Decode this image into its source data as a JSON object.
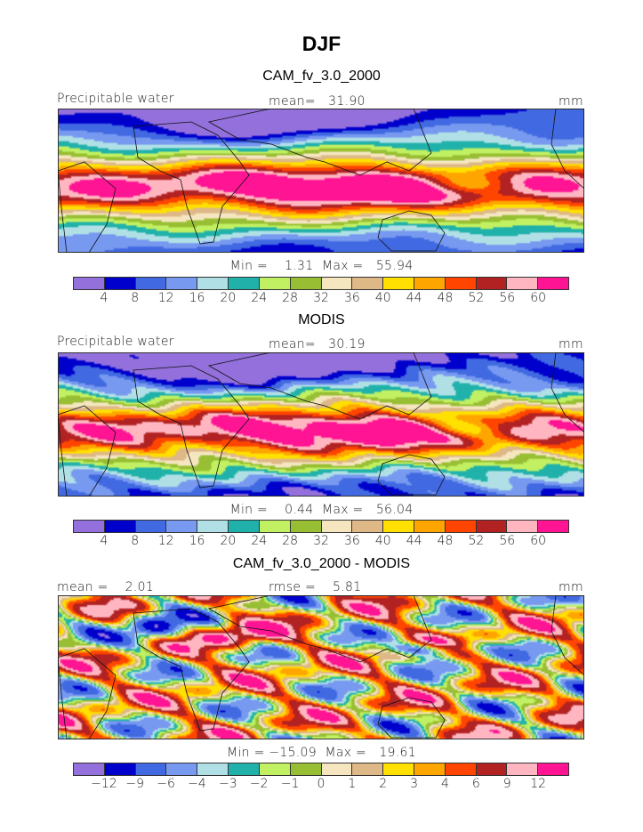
{
  "figure": {
    "title": "DJF"
  },
  "panels": [
    {
      "title": "CAM_fv_3.0_2000",
      "left_label": "Precipitable water",
      "center_label": "mean=   31.90",
      "units": "mm",
      "minmax": "Min =    1.31  Max =   55.94",
      "field": "model"
    },
    {
      "title": "MODIS",
      "left_label": "Precipitable water",
      "center_label": "mean=   30.19",
      "units": "mm",
      "minmax": "Min =    0.44  Max =   56.04",
      "field": "obs"
    },
    {
      "title": "CAM_fv_3.0_2000 - MODIS",
      "left_label": "mean =    2.01",
      "center_label": "rmse =    5.81",
      "units": "mm",
      "minmax": "Min = −15.09  Max =   19.61",
      "field": "diff"
    }
  ],
  "colorbar": {
    "colors": [
      "#9370db",
      "#0000cd",
      "#4169e1",
      "#7799f0",
      "#b0e0e6",
      "#20b2aa",
      "#c1f062",
      "#98bf33",
      "#f5e6c0",
      "#deb887",
      "#ffe000",
      "#ffa500",
      "#ff4500",
      "#b22222",
      "#ffb6c1",
      "#ff1493"
    ],
    "levels_pw": [
      "4",
      "8",
      "12",
      "16",
      "20",
      "24",
      "28",
      "32",
      "36",
      "40",
      "44",
      "48",
      "52",
      "56",
      "60"
    ],
    "levels_diff": [
      "−12",
      "−9",
      "−6",
      "−4",
      "−3",
      "−2",
      "−1",
      "0",
      "1",
      "2",
      "3",
      "4",
      "6",
      "9",
      "12"
    ]
  }
}
